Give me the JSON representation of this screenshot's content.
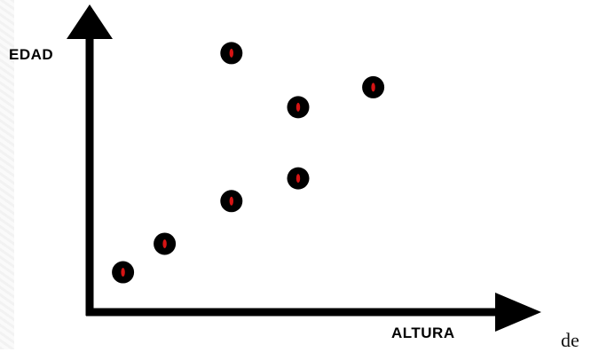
{
  "chart_data": {
    "type": "scatter",
    "title": "",
    "xlabel": "ALTURA",
    "ylabel": "EDAD",
    "x_ticks": false,
    "y_ticks": false,
    "grid": false,
    "xlim": [
      0,
      10
    ],
    "ylim": [
      0,
      10
    ],
    "points": [
      {
        "x": 0.8,
        "y": 1.4
      },
      {
        "x": 1.8,
        "y": 2.4
      },
      {
        "x": 3.4,
        "y": 3.9
      },
      {
        "x": 5.0,
        "y": 4.7
      },
      {
        "x": 3.4,
        "y": 9.1
      },
      {
        "x": 5.0,
        "y": 7.2
      },
      {
        "x": 6.8,
        "y": 7.9
      }
    ],
    "colors": {
      "axis": "#000000",
      "marker": "#000000",
      "marker_center": "#d61414"
    }
  },
  "trailing_text": "de"
}
